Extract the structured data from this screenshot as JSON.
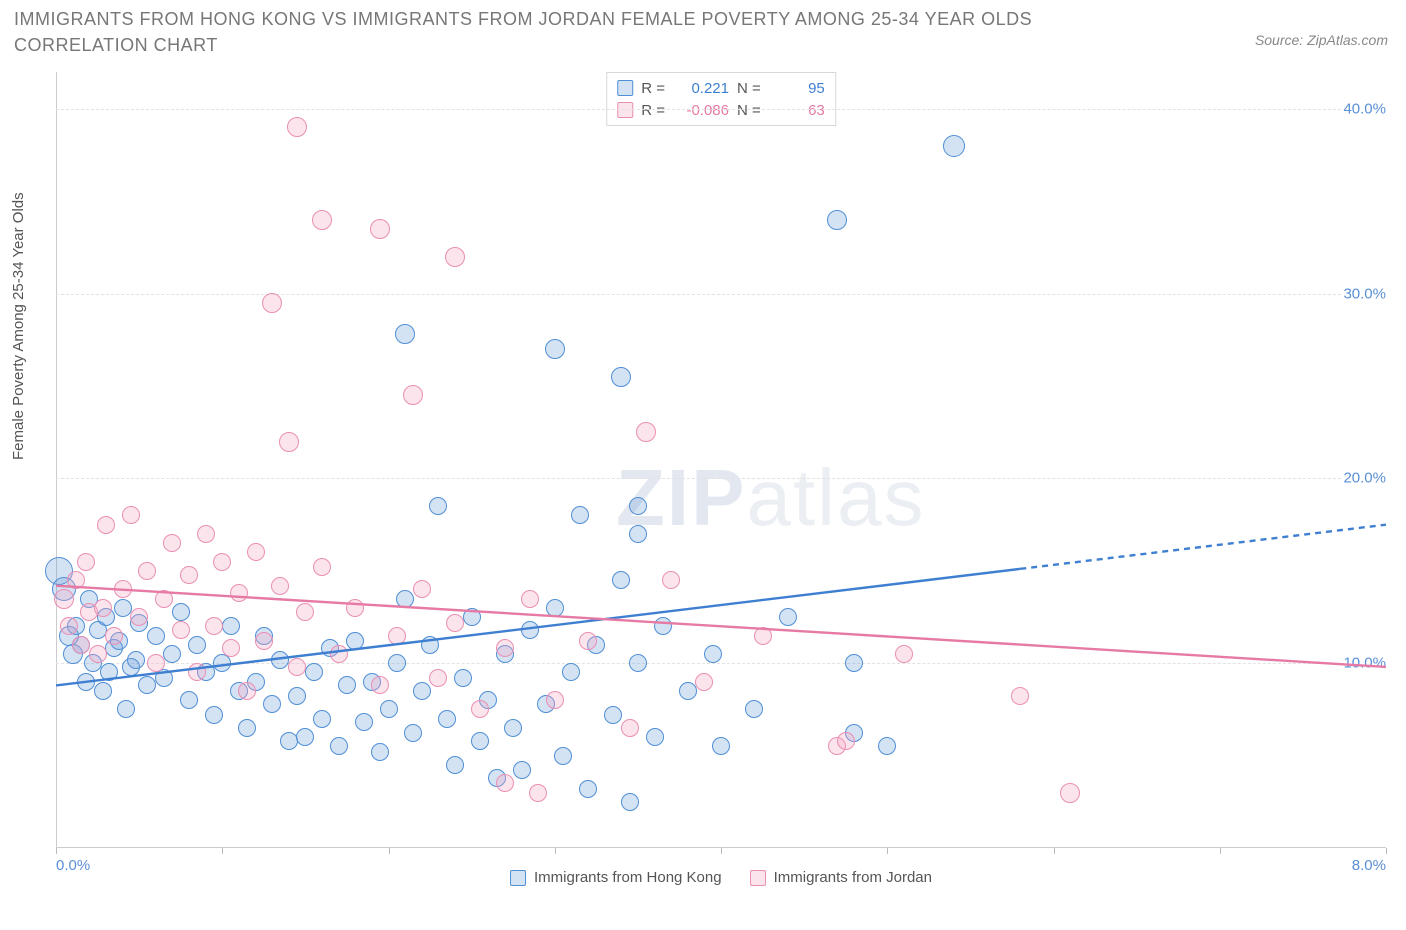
{
  "title": "IMMIGRANTS FROM HONG KONG VS IMMIGRANTS FROM JORDAN FEMALE POVERTY AMONG 25-34 YEAR OLDS CORRELATION CHART",
  "source": "Source: ZipAtlas.com",
  "ylabel": "Female Poverty Among 25-34 Year Olds",
  "watermark_a": "ZIP",
  "watermark_b": "atlas",
  "chart": {
    "type": "scatter",
    "background_color": "#ffffff",
    "grid_color": "#e2e2e2",
    "axis_color": "#cccccc",
    "tick_label_color": "#5a8fd6",
    "title_color": "#777777",
    "title_fontsize": 18,
    "label_fontsize": 15,
    "xlim": [
      0,
      8
    ],
    "ylim": [
      0,
      42
    ],
    "x_ticks": [
      0,
      1,
      2,
      3,
      4,
      5,
      6,
      7,
      8
    ],
    "x_tick_labels_shown": {
      "0": "0.0%",
      "8": "8.0%"
    },
    "y_ticks": [
      10,
      20,
      30,
      40
    ],
    "y_tick_labels": [
      "10.0%",
      "20.0%",
      "30.0%",
      "40.0%"
    ],
    "marker_radius": 9,
    "marker_border_width": 1.2,
    "marker_fill_opacity": 0.28,
    "trend_line_width": 2.4
  },
  "series": [
    {
      "id": "hongkong",
      "label": "Immigrants from Hong Kong",
      "color": "#3f7fd1",
      "fill": "rgba(99,155,217,0.28)",
      "border": "#4f8fd6",
      "R_label": "R =",
      "R": "0.221",
      "N_label": "N =",
      "N": "95",
      "trend": {
        "x1": 0,
        "y1": 8.8,
        "x2": 8,
        "y2": 17.5,
        "solid_until_x": 5.8
      },
      "points": [
        [
          0.02,
          15.0,
          14
        ],
        [
          0.05,
          14.0,
          12
        ],
        [
          0.08,
          11.5,
          10
        ],
        [
          0.1,
          10.5,
          10
        ],
        [
          0.12,
          12.0,
          9
        ],
        [
          0.15,
          11.0,
          9
        ],
        [
          0.18,
          9.0,
          9
        ],
        [
          0.2,
          13.5,
          9
        ],
        [
          0.22,
          10.0,
          9
        ],
        [
          0.25,
          11.8,
          9
        ],
        [
          0.28,
          8.5,
          9
        ],
        [
          0.3,
          12.5,
          9
        ],
        [
          0.32,
          9.5,
          9
        ],
        [
          0.35,
          10.8,
          9
        ],
        [
          0.38,
          11.2,
          9
        ],
        [
          0.4,
          13.0,
          9
        ],
        [
          0.42,
          7.5,
          9
        ],
        [
          0.45,
          9.8,
          9
        ],
        [
          0.48,
          10.2,
          9
        ],
        [
          0.5,
          12.2,
          9
        ],
        [
          0.55,
          8.8,
          9
        ],
        [
          0.6,
          11.5,
          9
        ],
        [
          0.65,
          9.2,
          9
        ],
        [
          0.7,
          10.5,
          9
        ],
        [
          0.75,
          12.8,
          9
        ],
        [
          0.8,
          8.0,
          9
        ],
        [
          0.85,
          11.0,
          9
        ],
        [
          0.9,
          9.5,
          9
        ],
        [
          0.95,
          7.2,
          9
        ],
        [
          1.0,
          10.0,
          9
        ],
        [
          1.05,
          12.0,
          9
        ],
        [
          1.1,
          8.5,
          9
        ],
        [
          1.15,
          6.5,
          9
        ],
        [
          1.2,
          9.0,
          9
        ],
        [
          1.25,
          11.5,
          9
        ],
        [
          1.3,
          7.8,
          9
        ],
        [
          1.35,
          10.2,
          9
        ],
        [
          1.4,
          5.8,
          9
        ],
        [
          1.45,
          8.2,
          9
        ],
        [
          1.5,
          6.0,
          9
        ],
        [
          1.55,
          9.5,
          9
        ],
        [
          1.6,
          7.0,
          9
        ],
        [
          1.65,
          10.8,
          9
        ],
        [
          1.7,
          5.5,
          9
        ],
        [
          1.75,
          8.8,
          9
        ],
        [
          1.8,
          11.2,
          9
        ],
        [
          1.85,
          6.8,
          9
        ],
        [
          1.9,
          9.0,
          9
        ],
        [
          1.95,
          5.2,
          9
        ],
        [
          2.0,
          7.5,
          9
        ],
        [
          2.05,
          10.0,
          9
        ],
        [
          2.1,
          13.5,
          9
        ],
        [
          2.1,
          27.8,
          10
        ],
        [
          2.15,
          6.2,
          9
        ],
        [
          2.2,
          8.5,
          9
        ],
        [
          2.25,
          11.0,
          9
        ],
        [
          2.3,
          18.5,
          9
        ],
        [
          2.35,
          7.0,
          9
        ],
        [
          2.4,
          4.5,
          9
        ],
        [
          2.45,
          9.2,
          9
        ],
        [
          2.5,
          12.5,
          9
        ],
        [
          2.55,
          5.8,
          9
        ],
        [
          2.6,
          8.0,
          9
        ],
        [
          2.65,
          3.8,
          9
        ],
        [
          2.7,
          10.5,
          9
        ],
        [
          2.75,
          6.5,
          9
        ],
        [
          2.8,
          4.2,
          9
        ],
        [
          2.85,
          11.8,
          9
        ],
        [
          2.95,
          7.8,
          9
        ],
        [
          3.0,
          13.0,
          9
        ],
        [
          3.0,
          27.0,
          10
        ],
        [
          3.05,
          5.0,
          9
        ],
        [
          3.1,
          9.5,
          9
        ],
        [
          3.15,
          18.0,
          9
        ],
        [
          3.2,
          3.2,
          9
        ],
        [
          3.25,
          11.0,
          9
        ],
        [
          3.35,
          7.2,
          9
        ],
        [
          3.4,
          14.5,
          9
        ],
        [
          3.4,
          25.5,
          10
        ],
        [
          3.45,
          2.5,
          9
        ],
        [
          3.5,
          10.0,
          9
        ],
        [
          3.5,
          17.0,
          9
        ],
        [
          3.5,
          18.5,
          9
        ],
        [
          3.6,
          6.0,
          9
        ],
        [
          3.65,
          12.0,
          9
        ],
        [
          3.8,
          8.5,
          9
        ],
        [
          3.95,
          10.5,
          9
        ],
        [
          4.0,
          5.5,
          9
        ],
        [
          4.2,
          7.5,
          9
        ],
        [
          4.4,
          12.5,
          9
        ],
        [
          4.7,
          34.0,
          10
        ],
        [
          4.8,
          6.2,
          9
        ],
        [
          4.8,
          10.0,
          9
        ],
        [
          5.0,
          5.5,
          9
        ],
        [
          5.4,
          38.0,
          11
        ]
      ]
    },
    {
      "id": "jordan",
      "label": "Immigrants from Jordan",
      "color": "#e67aa4",
      "fill": "rgba(244,164,196,0.30)",
      "border": "#ea8fb3",
      "R_label": "R =",
      "R": "-0.086",
      "N_label": "N =",
      "N": "63",
      "trend": {
        "x1": 0,
        "y1": 14.2,
        "x2": 8,
        "y2": 9.8,
        "solid_until_x": 8
      },
      "points": [
        [
          0.05,
          13.5,
          10
        ],
        [
          0.08,
          12.0,
          9
        ],
        [
          0.12,
          14.5,
          9
        ],
        [
          0.15,
          11.0,
          9
        ],
        [
          0.18,
          15.5,
          9
        ],
        [
          0.2,
          12.8,
          9
        ],
        [
          0.25,
          10.5,
          9
        ],
        [
          0.28,
          13.0,
          9
        ],
        [
          0.3,
          17.5,
          9
        ],
        [
          0.35,
          11.5,
          9
        ],
        [
          0.4,
          14.0,
          9
        ],
        [
          0.45,
          18.0,
          9
        ],
        [
          0.5,
          12.5,
          9
        ],
        [
          0.55,
          15.0,
          9
        ],
        [
          0.6,
          10.0,
          9
        ],
        [
          0.65,
          13.5,
          9
        ],
        [
          0.7,
          16.5,
          9
        ],
        [
          0.75,
          11.8,
          9
        ],
        [
          0.8,
          14.8,
          9
        ],
        [
          0.85,
          9.5,
          9
        ],
        [
          0.9,
          17.0,
          9
        ],
        [
          0.95,
          12.0,
          9
        ],
        [
          1.0,
          15.5,
          9
        ],
        [
          1.05,
          10.8,
          9
        ],
        [
          1.1,
          13.8,
          9
        ],
        [
          1.15,
          8.5,
          9
        ],
        [
          1.2,
          16.0,
          9
        ],
        [
          1.25,
          11.2,
          9
        ],
        [
          1.3,
          29.5,
          10
        ],
        [
          1.35,
          14.2,
          9
        ],
        [
          1.4,
          22.0,
          10
        ],
        [
          1.45,
          9.8,
          9
        ],
        [
          1.45,
          39.0,
          10
        ],
        [
          1.5,
          12.8,
          9
        ],
        [
          1.6,
          15.2,
          9
        ],
        [
          1.6,
          34.0,
          10
        ],
        [
          1.7,
          10.5,
          9
        ],
        [
          1.8,
          13.0,
          9
        ],
        [
          1.95,
          8.8,
          9
        ],
        [
          1.95,
          33.5,
          10
        ],
        [
          2.05,
          11.5,
          9
        ],
        [
          2.15,
          24.5,
          10
        ],
        [
          2.2,
          14.0,
          9
        ],
        [
          2.3,
          9.2,
          9
        ],
        [
          2.4,
          12.2,
          9
        ],
        [
          2.4,
          32.0,
          10
        ],
        [
          2.55,
          7.5,
          9
        ],
        [
          2.7,
          3.5,
          9
        ],
        [
          2.7,
          10.8,
          9
        ],
        [
          2.85,
          13.5,
          9
        ],
        [
          2.9,
          3.0,
          9
        ],
        [
          3.0,
          8.0,
          9
        ],
        [
          3.2,
          11.2,
          9
        ],
        [
          3.45,
          6.5,
          9
        ],
        [
          3.55,
          22.5,
          10
        ],
        [
          3.7,
          14.5,
          9
        ],
        [
          3.9,
          9.0,
          9
        ],
        [
          4.25,
          11.5,
          9
        ],
        [
          4.7,
          5.5,
          9
        ],
        [
          4.75,
          5.8,
          9
        ],
        [
          5.1,
          10.5,
          9
        ],
        [
          5.8,
          8.2,
          9
        ],
        [
          6.1,
          3.0,
          10
        ]
      ]
    }
  ]
}
